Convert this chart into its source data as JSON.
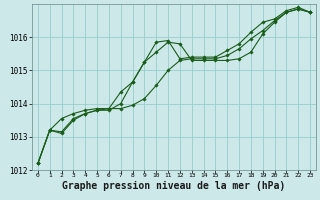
{
  "bg_color": "#cce8e8",
  "grid_color": "#99cccc",
  "line_color": "#1a5c1a",
  "marker_color": "#1a5c1a",
  "xlabel": "Graphe pression niveau de la mer (hPa)",
  "xlabel_fontsize": 7.0,
  "xlim": [
    -0.5,
    23.5
  ],
  "ylim": [
    1012,
    1017
  ],
  "yticks": [
    1012,
    1013,
    1014,
    1015,
    1016
  ],
  "xticks": [
    0,
    1,
    2,
    3,
    4,
    5,
    6,
    7,
    8,
    9,
    10,
    11,
    12,
    13,
    14,
    15,
    16,
    17,
    18,
    19,
    20,
    21,
    22,
    23
  ],
  "series": [
    [
      1012.2,
      1013.2,
      1013.1,
      1013.5,
      1013.7,
      1013.8,
      1013.8,
      1014.0,
      1014.65,
      1015.25,
      1015.55,
      1015.85,
      1015.8,
      1015.3,
      1015.3,
      1015.3,
      1015.3,
      1015.35,
      1015.55,
      1016.1,
      1016.45,
      1016.75,
      1016.85,
      1016.75
    ],
    [
      1012.2,
      1013.2,
      1013.55,
      1013.7,
      1013.8,
      1013.85,
      1013.85,
      1014.35,
      1014.65,
      1015.25,
      1015.85,
      1015.9,
      1015.35,
      1015.4,
      1015.4,
      1015.4,
      1015.6,
      1015.8,
      1016.15,
      1016.45,
      1016.55,
      1016.8,
      1016.9,
      1016.75
    ],
    [
      1012.2,
      1013.2,
      1013.15,
      1013.55,
      1013.7,
      1013.8,
      1013.85,
      1013.85,
      1013.95,
      1014.15,
      1014.55,
      1015.0,
      1015.3,
      1015.35,
      1015.35,
      1015.35,
      1015.45,
      1015.65,
      1015.95,
      1016.2,
      1016.5,
      1016.75,
      1016.85,
      1016.75
    ]
  ]
}
